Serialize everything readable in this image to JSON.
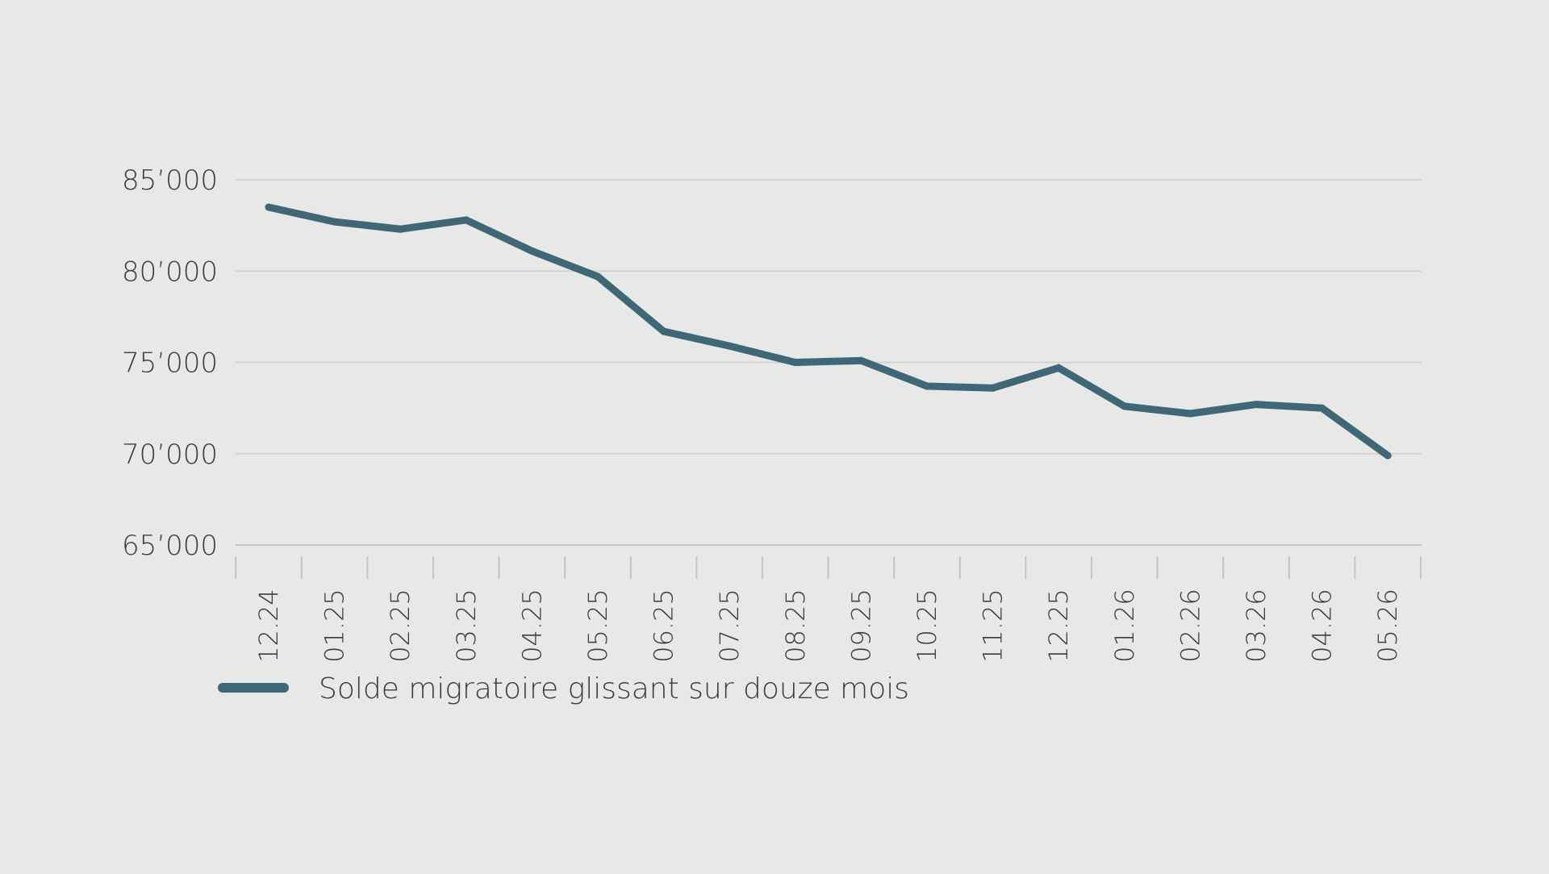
{
  "chart_data": {
    "type": "line",
    "title": "",
    "xlabel": "",
    "ylabel": "",
    "categories": [
      "12.24",
      "01.25",
      "02.25",
      "03.25",
      "04.25",
      "05.25",
      "06.25",
      "07.25",
      "08.25",
      "09.25",
      "10.25",
      "11.25",
      "12.25",
      "01.26",
      "02.26",
      "03.26",
      "04.26",
      "05.26"
    ],
    "series": [
      {
        "name": "Solde migratoire glissant sur douze mois",
        "color": "#3e6878",
        "values": [
          83500,
          82700,
          82300,
          82800,
          81100,
          79700,
          76700,
          75900,
          75000,
          75100,
          73700,
          73600,
          74700,
          72600,
          72200,
          72700,
          72500,
          69900
        ]
      }
    ],
    "ylim": [
      65000,
      85000
    ],
    "yticks": [
      65000,
      70000,
      75000,
      80000,
      85000
    ],
    "ytick_labels": [
      "65’000",
      "70’000",
      "75’000",
      "80’000",
      "85’000"
    ],
    "grid": true,
    "legend_position": "bottom-left"
  },
  "colors": {
    "background": "#e8e8e6",
    "gridline": "#d2d2d0",
    "axis": "#c4c4c2",
    "text": "#3c3c3c"
  }
}
